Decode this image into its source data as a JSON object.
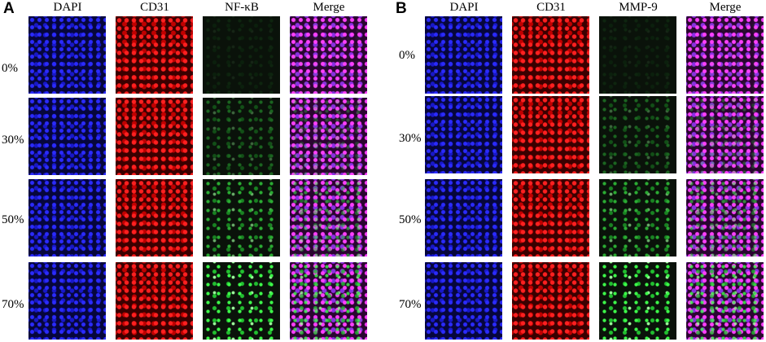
{
  "panels": [
    {
      "label": "A",
      "columns": [
        "DAPI",
        "CD31",
        "NF-κB",
        "Merge"
      ],
      "rows": [
        "0%",
        "30%",
        "50%",
        "70%"
      ]
    },
    {
      "label": "B",
      "columns": [
        "DAPI",
        "CD31",
        "MMP-9",
        "Merge"
      ],
      "rows": [
        "0%",
        "30%",
        "50%",
        "70%"
      ]
    }
  ]
}
